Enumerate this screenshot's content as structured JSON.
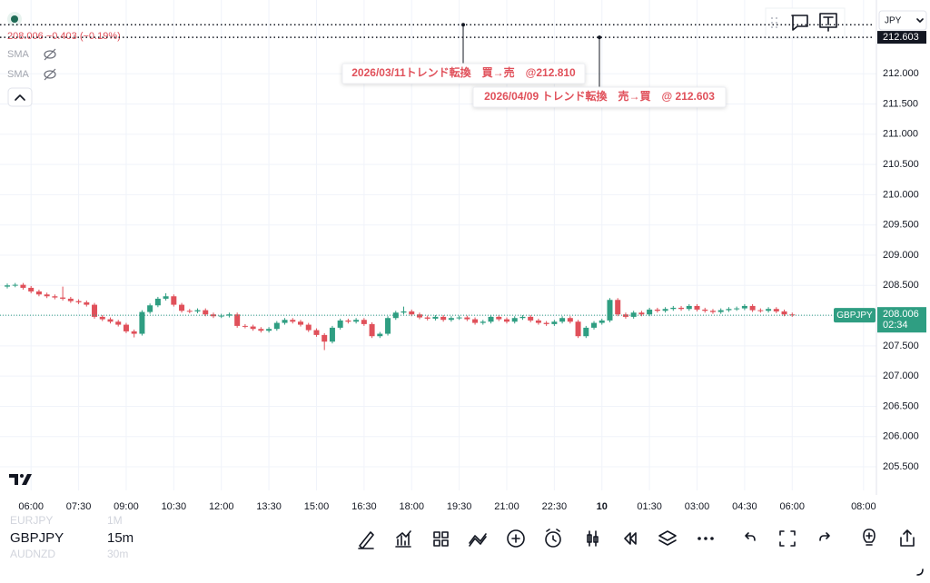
{
  "header": {
    "price_change": "208.006 −0.403 (−0.19%)",
    "indicators": [
      "SMA",
      "SMA"
    ],
    "currency": "JPY"
  },
  "chart_data": {
    "type": "candlestick",
    "symbol": "GBPJPY",
    "countdown": "02:34",
    "up_color": "#2f9e82",
    "down_color": "#e0505a",
    "open": [
      208.48,
      208.5,
      208.51,
      208.46,
      208.4,
      208.35,
      208.32,
      208.3,
      208.28,
      208.24,
      208.22,
      208.18,
      207.98,
      207.94,
      207.9,
      207.85,
      207.74,
      207.7,
      208.06,
      208.17,
      208.28,
      208.32,
      208.18,
      208.08,
      208.07,
      208.09,
      208.02,
      207.99,
      208.0,
      208.02,
      207.83,
      207.82,
      207.78,
      207.75,
      207.78,
      207.88,
      207.93,
      207.9,
      207.85,
      207.76,
      207.68,
      207.57,
      207.8,
      207.92,
      207.9,
      207.93,
      207.86,
      207.66,
      207.7,
      207.96,
      208.05,
      208.07,
      208.02,
      207.97,
      207.95,
      207.98,
      207.93,
      207.96,
      207.97,
      207.94,
      207.88,
      207.9,
      207.98,
      207.94,
      207.9,
      207.96,
      207.98,
      207.92,
      207.88,
      207.86,
      207.9,
      207.96,
      207.9,
      207.66,
      207.8,
      207.88,
      207.92,
      208.26,
      208.02,
      207.98,
      208.05,
      208.02,
      208.1,
      208.08,
      208.11,
      208.13,
      208.11,
      208.16,
      208.1,
      208.08,
      208.06,
      208.09,
      208.11,
      208.12,
      208.16,
      208.09,
      208.08,
      208.11,
      208.07,
      208.02
    ],
    "high": [
      208.53,
      208.54,
      208.54,
      208.49,
      208.43,
      208.38,
      208.35,
      208.48,
      208.31,
      208.27,
      208.25,
      208.21,
      208.01,
      207.97,
      207.93,
      207.88,
      207.77,
      208.09,
      208.2,
      208.31,
      208.37,
      208.35,
      208.21,
      208.11,
      208.12,
      208.12,
      208.05,
      208.03,
      208.05,
      208.05,
      207.86,
      207.85,
      207.81,
      207.81,
      207.91,
      207.96,
      207.96,
      207.93,
      207.88,
      207.79,
      207.71,
      207.83,
      207.95,
      207.95,
      207.96,
      207.96,
      207.89,
      207.73,
      207.99,
      208.08,
      208.15,
      208.1,
      208.05,
      208.0,
      208.01,
      208.01,
      207.99,
      208.0,
      208.0,
      207.97,
      207.93,
      208.01,
      208.01,
      207.97,
      207.99,
      208.01,
      208.01,
      207.95,
      207.91,
      207.93,
      207.99,
      207.99,
      207.93,
      207.83,
      207.91,
      207.95,
      208.29,
      208.29,
      208.05,
      208.08,
      208.08,
      208.13,
      208.13,
      208.14,
      208.16,
      208.16,
      208.19,
      208.19,
      208.13,
      208.11,
      208.12,
      208.14,
      208.15,
      208.19,
      208.19,
      208.12,
      208.14,
      208.14,
      208.1,
      208.05
    ],
    "low": [
      208.45,
      208.47,
      208.43,
      208.37,
      208.32,
      208.29,
      208.27,
      208.25,
      208.21,
      208.19,
      208.15,
      207.95,
      207.91,
      207.87,
      207.82,
      207.71,
      207.64,
      207.67,
      208.03,
      208.14,
      208.25,
      208.15,
      208.05,
      208.04,
      208.04,
      207.99,
      207.96,
      207.96,
      207.97,
      207.8,
      207.79,
      207.75,
      207.72,
      207.72,
      207.75,
      207.85,
      207.87,
      207.82,
      207.73,
      207.65,
      207.43,
      207.54,
      207.77,
      207.87,
      207.87,
      207.83,
      207.63,
      207.63,
      207.67,
      207.93,
      208.02,
      207.99,
      207.94,
      207.92,
      207.92,
      207.9,
      207.9,
      207.93,
      207.91,
      207.85,
      207.85,
      207.87,
      207.91,
      207.87,
      207.87,
      207.93,
      207.89,
      207.85,
      207.83,
      207.83,
      207.87,
      207.87,
      207.63,
      207.63,
      207.77,
      207.85,
      207.89,
      207.99,
      207.95,
      207.95,
      207.99,
      207.99,
      208.05,
      208.05,
      208.08,
      208.08,
      208.08,
      208.07,
      208.05,
      208.03,
      208.03,
      208.06,
      208.08,
      208.09,
      208.06,
      208.05,
      208.05,
      208.04,
      207.99,
      207.98
    ],
    "close": [
      208.5,
      208.51,
      208.46,
      208.4,
      208.35,
      208.32,
      208.3,
      208.28,
      208.24,
      208.22,
      208.18,
      207.98,
      207.94,
      207.9,
      207.85,
      207.74,
      207.7,
      208.06,
      208.17,
      208.28,
      208.32,
      208.18,
      208.08,
      208.07,
      208.09,
      208.02,
      207.99,
      208.0,
      208.02,
      207.83,
      207.82,
      207.78,
      207.75,
      207.78,
      207.88,
      207.93,
      207.9,
      207.85,
      207.76,
      207.68,
      207.57,
      207.8,
      207.92,
      207.9,
      207.93,
      207.86,
      207.66,
      207.7,
      207.96,
      208.05,
      208.07,
      208.02,
      207.97,
      207.95,
      207.98,
      207.93,
      207.96,
      207.97,
      207.94,
      207.88,
      207.9,
      207.98,
      207.94,
      207.9,
      207.96,
      207.98,
      207.92,
      207.88,
      207.86,
      207.9,
      207.96,
      207.9,
      207.66,
      207.8,
      207.88,
      207.92,
      208.26,
      208.02,
      207.98,
      208.05,
      208.02,
      208.1,
      208.08,
      208.11,
      208.13,
      208.11,
      208.16,
      208.1,
      208.08,
      208.06,
      208.09,
      208.11,
      208.12,
      208.16,
      208.09,
      208.08,
      208.11,
      208.07,
      208.02,
      208.006
    ],
    "ylim": [
      205.11,
      213.22
    ],
    "yticks": [
      {
        "value": 205.5,
        "label": "205.500"
      },
      {
        "value": 206,
        "label": "206.000"
      },
      {
        "value": 206.5,
        "label": "206.500"
      },
      {
        "value": 207,
        "label": "207.000"
      },
      {
        "value": 207.5,
        "label": "207.500"
      },
      {
        "value": 208,
        "label": "208.000"
      },
      {
        "value": 208.5,
        "label": "208.500"
      },
      {
        "value": 209,
        "label": "209.000"
      },
      {
        "value": 209.5,
        "label": "209.500"
      },
      {
        "value": 210,
        "label": "210.000"
      },
      {
        "value": 210.5,
        "label": "210.500"
      },
      {
        "value": 211,
        "label": "211.000"
      },
      {
        "value": 211.5,
        "label": "211.500"
      },
      {
        "value": 212,
        "label": "212.000"
      }
    ],
    "xtick_labels": [
      "06:00",
      "07:30",
      "09:00",
      "10:30",
      "12:00",
      "13:30",
      "15:00",
      "16:30",
      "18:00",
      "19:30",
      "21:00",
      "22:30",
      "10",
      "01:30",
      "03:00",
      "04:30",
      "06:00",
      "08:00"
    ],
    "grid": true,
    "hlines": [
      212.81,
      212.603
    ],
    "annotations": [
      "2026/03/11トレンド転換　買→売　@212.810",
      "2026/04/09 トレンド転換　売→買　@ 212.603"
    ]
  },
  "watchlist": [
    {
      "symbol": "EURJPY",
      "interval": "1M"
    },
    {
      "symbol": "GBPJPY",
      "interval": "15m"
    },
    {
      "symbol": "AUDNZD",
      "interval": "30m"
    }
  ]
}
